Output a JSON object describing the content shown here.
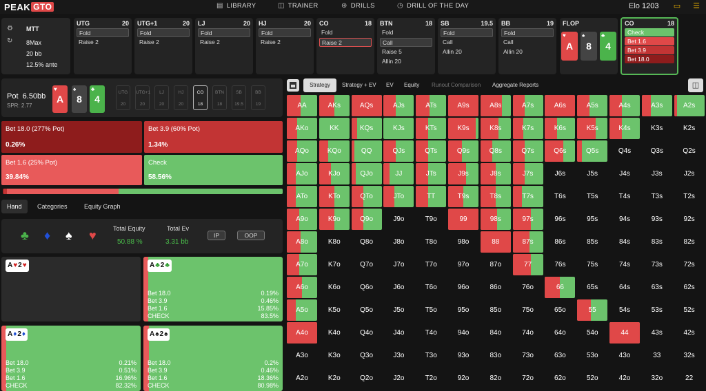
{
  "nav": {
    "logo_a": "PEAK",
    "logo_b": "GTO",
    "items": [
      "LIBRARY",
      "TRAINER",
      "DRILLS",
      "DRILL OF THE DAY"
    ],
    "elo_label": "Elo",
    "elo_value": "1203"
  },
  "game": {
    "type": "MTT",
    "players": "8Max",
    "stack": "20 bb",
    "ante": "12.5% ante"
  },
  "positions": [
    {
      "name": "UTG",
      "stack": "20",
      "opts": [
        "Fold",
        "Raise 2"
      ],
      "sel": 0,
      "selcolor": "grey"
    },
    {
      "name": "UTG+1",
      "stack": "20",
      "opts": [
        "Fold",
        "Raise 2"
      ],
      "sel": 0,
      "selcolor": "grey"
    },
    {
      "name": "LJ",
      "stack": "20",
      "opts": [
        "Fold",
        "Raise 2"
      ],
      "sel": 0,
      "selcolor": "grey"
    },
    {
      "name": "HJ",
      "stack": "20",
      "opts": [
        "Fold",
        "Raise 2"
      ],
      "sel": 0,
      "selcolor": "grey"
    },
    {
      "name": "CO",
      "stack": "18",
      "opts": [
        "Fold",
        "Raise 2"
      ],
      "sel": 1,
      "selcolor": "red"
    },
    {
      "name": "BTN",
      "stack": "18",
      "opts": [
        "Fold",
        "Call",
        "Raise 5",
        "Allin 20"
      ],
      "sel": 1,
      "selcolor": "grey"
    },
    {
      "name": "SB",
      "stack": "19.5",
      "opts": [
        "Fold",
        "Call",
        "Allin 20"
      ],
      "sel": 0,
      "selcolor": "grey"
    },
    {
      "name": "BB",
      "stack": "19",
      "opts": [
        "Fold",
        "Call",
        "Allin 20"
      ],
      "sel": 0,
      "selcolor": "grey"
    }
  ],
  "flop": {
    "label": "FLOP",
    "cards": [
      {
        "rank": "A",
        "suit": "♥",
        "color": "#e04848"
      },
      {
        "rank": "8",
        "suit": "♠",
        "color": "#444444"
      },
      {
        "rank": "4",
        "suit": "♣",
        "color": "#4bb34b"
      }
    ]
  },
  "current": {
    "name": "CO",
    "stack": "18",
    "opts": [
      {
        "label": "Check",
        "color": "#6cc36c"
      },
      {
        "label": "Bet 1.6",
        "color": "#e04848"
      },
      {
        "label": "Bet 3.9",
        "color": "#c23434"
      },
      {
        "label": "Bet 18.0",
        "color": "#8e1c1c"
      }
    ]
  },
  "pot": {
    "label": "Pot",
    "value": "6.50bb",
    "spr": "SPR: 2.77"
  },
  "mini_positions": [
    {
      "n": "UTG",
      "v": "20"
    },
    {
      "n": "UTG+1",
      "v": "20"
    },
    {
      "n": "LJ",
      "v": "20"
    },
    {
      "n": "HJ",
      "v": "20"
    },
    {
      "n": "CO",
      "v": "18"
    },
    {
      "n": "BTN",
      "v": "18"
    },
    {
      "n": "SB",
      "v": "19.5"
    },
    {
      "n": "BB",
      "v": "19"
    }
  ],
  "actions": [
    {
      "label": "Bet 18.0 (277% Pot)",
      "pct": "0.26%",
      "color": "#8e1c1c"
    },
    {
      "label": "Bet 3.9 (60% Pot)",
      "pct": "1.34%",
      "color": "#c23434"
    },
    {
      "label": "Bet 1.6 (25% Pot)",
      "pct": "39.84%",
      "color": "#e85a5a"
    },
    {
      "label": "Check",
      "pct": "58.56%",
      "color": "#6cc36c"
    }
  ],
  "freq": [
    {
      "v": 0.26,
      "c": "#8e1c1c"
    },
    {
      "v": 1.34,
      "c": "#c23434"
    },
    {
      "v": 39.84,
      "c": "#e85a5a"
    },
    {
      "v": 58.56,
      "c": "#6cc36c"
    }
  ],
  "tabs": [
    "Hand",
    "Categories",
    "Equity Graph"
  ],
  "equity": {
    "total_equity_label": "Total Equity",
    "total_equity": "50.88 %",
    "total_ev_label": "Total Ev",
    "total_ev": "3.31 bb",
    "ip": "IP",
    "oop": "OOP"
  },
  "combos": [
    {
      "cards": [
        {
          "r": "A",
          "s": "♥",
          "c": "#d02020"
        },
        {
          "r": "2",
          "s": "♥",
          "c": "#d02020"
        }
      ],
      "empty": true,
      "rows": []
    },
    {
      "cards": [
        {
          "r": "A",
          "s": "♣",
          "c": "#2a9a2a"
        },
        {
          "r": "2",
          "s": "♣",
          "c": "#2a9a2a"
        }
      ],
      "red": 16.5,
      "rows": [
        [
          "Bet 18.0",
          "0.19%"
        ],
        [
          "Bet 3.9",
          "0.46%"
        ],
        [
          "Bet 1.6",
          "15.85%"
        ],
        [
          "CHECK",
          "83.5%"
        ]
      ]
    },
    {
      "cards": [
        {
          "r": "A",
          "s": "♦",
          "c": "#1a4ad0"
        },
        {
          "r": "2",
          "s": "♦",
          "c": "#1a4ad0"
        }
      ],
      "red": 17.7,
      "rows": [
        [
          "Bet 18.0",
          "0.21%"
        ],
        [
          "Bet 3.9",
          "0.51%"
        ],
        [
          "Bet 1.6",
          "16.96%"
        ],
        [
          "CHECK",
          "82.32%"
        ]
      ]
    },
    {
      "cards": [
        {
          "r": "A",
          "s": "♠",
          "c": "#111111"
        },
        {
          "r": "2",
          "s": "♠",
          "c": "#111111"
        }
      ],
      "red": 19.0,
      "rows": [
        [
          "Bet 18.0",
          "0.2%"
        ],
        [
          "Bet 3.9",
          "0.46%"
        ],
        [
          "Bet 1.6",
          "18.36%"
        ],
        [
          "CHECK",
          "80.98%"
        ]
      ]
    }
  ],
  "rtabs": [
    "Strategy",
    "Strategy + EV",
    "EV",
    "Equity",
    "Runout Comparison",
    "Aggregate Reports"
  ],
  "grid_ranks": [
    "A",
    "K",
    "Q",
    "J",
    "T",
    "9",
    "8",
    "7",
    "6",
    "5",
    "4",
    "3",
    "2"
  ],
  "grid_red": [
    [
      45,
      50,
      100,
      40,
      45,
      100,
      70,
      40,
      100,
      40,
      40,
      30,
      10
    ],
    [
      35,
      0,
      20,
      0,
      40,
      90,
      60,
      35,
      40,
      60,
      40,
      -1,
      -1
    ],
    [
      35,
      30,
      10,
      40,
      40,
      45,
      40,
      40,
      60,
      15,
      -1,
      -1,
      -1
    ],
    [
      30,
      40,
      15,
      20,
      40,
      60,
      50,
      40,
      -1,
      -1,
      -1,
      -1,
      -1
    ],
    [
      30,
      50,
      40,
      35,
      40,
      50,
      50,
      30,
      -1,
      -1,
      -1,
      -1,
      -1
    ],
    [
      40,
      50,
      40,
      -1,
      -1,
      100,
      55,
      60,
      -1,
      -1,
      -1,
      -1,
      -1
    ],
    [
      45,
      -1,
      -1,
      -1,
      -1,
      -1,
      100,
      55,
      -1,
      -1,
      -1,
      -1,
      -1
    ],
    [
      40,
      -1,
      -1,
      -1,
      -1,
      -1,
      -1,
      60,
      -1,
      -1,
      -1,
      -1,
      -1
    ],
    [
      50,
      -1,
      -1,
      -1,
      -1,
      -1,
      -1,
      -1,
      50,
      -1,
      -1,
      -1,
      -1
    ],
    [
      30,
      -1,
      -1,
      -1,
      -1,
      -1,
      -1,
      -1,
      -1,
      45,
      -1,
      -1,
      -1
    ],
    [
      100,
      -1,
      -1,
      -1,
      -1,
      -1,
      -1,
      -1,
      -1,
      -1,
      100,
      -1,
      -1
    ],
    [
      -1,
      -1,
      -1,
      -1,
      -1,
      -1,
      -1,
      -1,
      -1,
      -1,
      -1,
      -1,
      -1
    ],
    [
      -1,
      -1,
      -1,
      -1,
      -1,
      -1,
      -1,
      -1,
      -1,
      -1,
      -1,
      -1,
      -1
    ]
  ]
}
